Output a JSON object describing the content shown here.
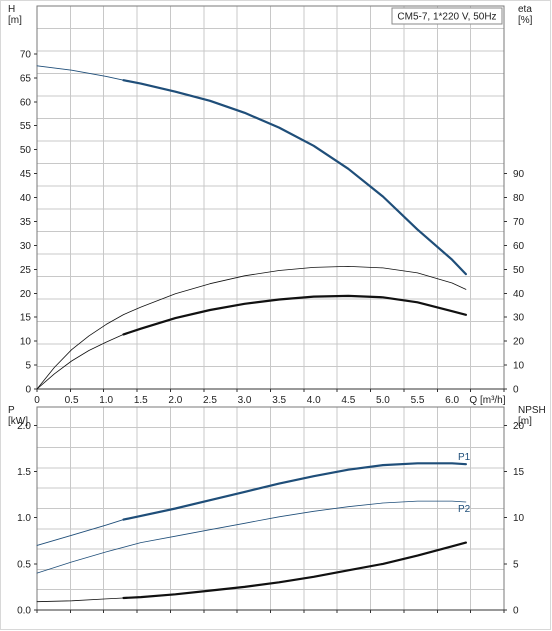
{
  "chart_data": [
    {
      "type": "line",
      "title": "CM5-7, 1*220 V, 50Hz",
      "xlabel": "Q [m³/h]",
      "ylabel_left": {
        "symbol": "H",
        "unit": "[m]"
      },
      "ylabel_right": {
        "symbol": "eta",
        "unit": "[%]"
      },
      "xlim": [
        0,
        6.75
      ],
      "xticks": [
        "0",
        "0.5",
        "1.0",
        "1.5",
        "2.0",
        "2.5",
        "3.0",
        "3.5",
        "4.0",
        "4.5",
        "5.0",
        "5.5",
        "6.0"
      ],
      "ylim_left": [
        0,
        80
      ],
      "yticks_left": [
        "0",
        "5",
        "10",
        "15",
        "20",
        "25",
        "30",
        "35",
        "40",
        "45",
        "50",
        "55",
        "60",
        "65",
        "70"
      ],
      "ylim_right": [
        0,
        160
      ],
      "yticks_right": [
        "0",
        "10",
        "20",
        "30",
        "40",
        "50",
        "60",
        "70",
        "80",
        "90"
      ],
      "grid": true,
      "series": [
        {
          "axis": "left",
          "color": "#1f4e79",
          "width": 0.9,
          "bold_from": 1.25,
          "bold_width": 2.2,
          "x": [
            0,
            0.5,
            1.0,
            1.25,
            1.5,
            2.0,
            2.5,
            3.0,
            3.5,
            4.0,
            4.5,
            5.0,
            5.5,
            6.0,
            6.2
          ],
          "y": [
            67.5,
            66.6,
            65.3,
            64.5,
            63.8,
            62.1,
            60.2,
            57.7,
            54.6,
            50.8,
            46.0,
            40.2,
            33.3,
            27.0,
            24.0
          ]
        },
        {
          "axis": "right",
          "color": "#111111",
          "width": 0.8,
          "bold_from": 99,
          "bold_width": 1.0,
          "x": [
            0,
            0.25,
            0.5,
            0.75,
            1.0,
            1.25,
            1.5,
            2.0,
            2.5,
            3.0,
            3.5,
            4.0,
            4.5,
            5.0,
            5.5,
            6.0,
            6.2
          ],
          "y": [
            0,
            9,
            16.4,
            22.2,
            27,
            31.1,
            34.2,
            39.8,
            44,
            47.3,
            49.5,
            50.8,
            51.2,
            50.6,
            48.5,
            44.3,
            41.6
          ]
        },
        {
          "axis": "right",
          "color": "#111111",
          "width": 0.8,
          "bold_from": 1.25,
          "bold_width": 2.2,
          "x": [
            0,
            0.25,
            0.5,
            0.75,
            1.0,
            1.25,
            1.5,
            2.0,
            2.5,
            3.0,
            3.5,
            4.0,
            4.5,
            5.0,
            5.5,
            6.0,
            6.2
          ],
          "y": [
            0,
            6.3,
            11.7,
            16.1,
            19.6,
            22.8,
            25.2,
            29.6,
            33,
            35.6,
            37.4,
            38.6,
            38.9,
            38.3,
            36.2,
            32.5,
            31.0
          ]
        }
      ]
    },
    {
      "type": "line",
      "xlabel": "",
      "ylabel_left": {
        "symbol": "P",
        "unit": "[kW]"
      },
      "ylabel_right": {
        "symbol": "NPSH",
        "unit": "[m]"
      },
      "xlim": [
        0,
        6.75
      ],
      "ylim_left": [
        0,
        2.2
      ],
      "yticks_left": [
        "0.0",
        "0.5",
        "1.0",
        "1.5",
        "2.0"
      ],
      "ylim_right": [
        0,
        22
      ],
      "yticks_right": [
        "0",
        "5",
        "10",
        "15",
        "20"
      ],
      "grid": true,
      "series": [
        {
          "name": "P1",
          "axis": "left",
          "color": "#1f4e79",
          "width": 0.9,
          "bold_from": 1.25,
          "bold_width": 2.2,
          "x": [
            0,
            0.5,
            1.0,
            1.25,
            1.5,
            2.0,
            2.5,
            3.0,
            3.5,
            4.0,
            4.5,
            5.0,
            5.5,
            6.0,
            6.2
          ],
          "y": [
            0.7,
            0.81,
            0.92,
            0.98,
            1.02,
            1.1,
            1.19,
            1.28,
            1.37,
            1.45,
            1.52,
            1.57,
            1.59,
            1.59,
            1.58
          ]
        },
        {
          "name": "P2",
          "axis": "left",
          "color": "#1f4e79",
          "width": 0.8,
          "bold_from": 99,
          "bold_width": 1.0,
          "x": [
            0,
            0.5,
            1.0,
            1.5,
            2.0,
            2.5,
            3.0,
            3.5,
            4.0,
            4.5,
            5.0,
            5.5,
            6.0,
            6.2
          ],
          "y": [
            0.4,
            0.52,
            0.63,
            0.73,
            0.8,
            0.87,
            0.94,
            1.01,
            1.07,
            1.12,
            1.16,
            1.18,
            1.18,
            1.17
          ]
        },
        {
          "axis": "right",
          "color": "#111111",
          "width": 0.8,
          "bold_from": 1.25,
          "bold_width": 2.2,
          "x": [
            0,
            0.5,
            1.0,
            1.25,
            1.5,
            2.0,
            2.5,
            3.0,
            3.5,
            4.0,
            4.5,
            5.0,
            5.5,
            6.0,
            6.2
          ],
          "y": [
            0.9,
            1.0,
            1.2,
            1.3,
            1.4,
            1.7,
            2.1,
            2.5,
            3.0,
            3.6,
            4.3,
            5.0,
            5.9,
            6.9,
            7.3
          ]
        }
      ]
    }
  ]
}
